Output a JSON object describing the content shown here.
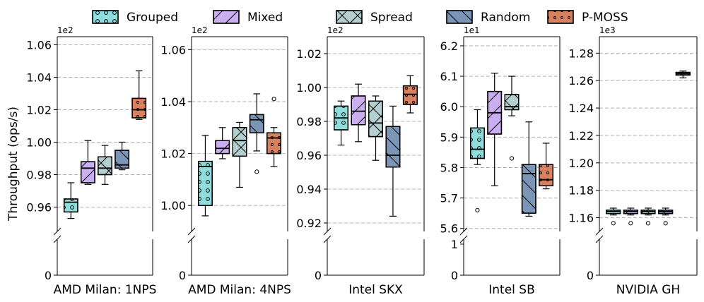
{
  "chart_data": {
    "type": "box",
    "ylabel": "Throughput (ops/s)",
    "legend": {
      "placement": "top",
      "entries": [
        {
          "name": "Grouped",
          "color": "#8fdcdc",
          "hatch": "circles"
        },
        {
          "name": "Mixed",
          "color": "#c9aef0",
          "hatch": "slash"
        },
        {
          "name": "Spread",
          "color": "#b3cfcf",
          "hatch": "x"
        },
        {
          "name": "Random",
          "color": "#7a95b5",
          "hatch": "backslash"
        },
        {
          "name": "P-MOSS",
          "color": "#d9805f",
          "hatch": "dots"
        }
      ]
    },
    "panels": [
      {
        "title": "AMD Milan: 1NPS",
        "multiplier": "1e2",
        "ylim": [
          0.945,
          1.065
        ],
        "yticks": [
          0.96,
          0.98,
          1.0,
          1.02,
          1.04,
          1.06
        ],
        "ytick_labels": [
          "0.96",
          "0.98",
          "1.00",
          "1.02",
          "1.04",
          "1.06"
        ],
        "zero_label": "0",
        "boxes": [
          {
            "series": "Grouped",
            "whislo": 0.953,
            "q1": 0.957,
            "med": 0.963,
            "q3": 0.965,
            "whishi": 0.975,
            "fliers": []
          },
          {
            "series": "Mixed",
            "whislo": 0.974,
            "q1": 0.975,
            "med": 0.984,
            "q3": 0.988,
            "whishi": 1.001,
            "fliers": []
          },
          {
            "series": "Spread",
            "whislo": 0.974,
            "q1": 0.98,
            "med": 0.984,
            "q3": 0.991,
            "whishi": 0.998,
            "fliers": []
          },
          {
            "series": "Random",
            "whislo": 0.983,
            "q1": 0.984,
            "med": 0.986,
            "q3": 0.995,
            "whishi": 1.0,
            "fliers": []
          },
          {
            "series": "P-MOSS",
            "whislo": 1.014,
            "q1": 1.015,
            "med": 1.02,
            "q3": 1.027,
            "whishi": 1.044,
            "fliers": []
          }
        ]
      },
      {
        "title": "AMD Milan: 4NPS",
        "multiplier": "1e2",
        "ylim": [
          0.99,
          1.065
        ],
        "yticks": [
          1.0,
          1.02,
          1.04,
          1.06
        ],
        "ytick_labels": [
          "1.00",
          "1.02",
          "1.04",
          "1.06"
        ],
        "zero_label": "0",
        "boxes": [
          {
            "series": "Grouped",
            "whislo": 0.996,
            "q1": 1.0,
            "med": 1.015,
            "q3": 1.017,
            "whishi": 1.027,
            "fliers": []
          },
          {
            "series": "Mixed",
            "whislo": 1.018,
            "q1": 1.02,
            "med": 1.022,
            "q3": 1.025,
            "whishi": 1.03,
            "fliers": []
          },
          {
            "series": "Spread",
            "whislo": 1.007,
            "q1": 1.019,
            "med": 1.025,
            "q3": 1.03,
            "whishi": 1.032,
            "fliers": []
          },
          {
            "series": "Random",
            "whislo": 1.021,
            "q1": 1.028,
            "med": 1.033,
            "q3": 1.035,
            "whishi": 1.043,
            "fliers": [
              1.013
            ]
          },
          {
            "series": "P-MOSS",
            "whislo": 1.015,
            "q1": 1.02,
            "med": 1.026,
            "q3": 1.028,
            "whishi": 1.03,
            "fliers": [
              1.041
            ]
          }
        ]
      },
      {
        "title": "Intel SKX",
        "multiplier": "1e2",
        "ylim": [
          0.915,
          1.03
        ],
        "yticks": [
          0.92,
          0.94,
          0.96,
          0.98,
          1.0,
          1.02
        ],
        "ytick_labels": [
          "0.92",
          "0.94",
          "0.96",
          "0.98",
          "1.00",
          "1.02"
        ],
        "zero_label": "0",
        "boxes": [
          {
            "series": "Grouped",
            "whislo": 0.966,
            "q1": 0.975,
            "med": 0.982,
            "q3": 0.989,
            "whishi": 0.992,
            "fliers": []
          },
          {
            "series": "Mixed",
            "whislo": 0.968,
            "q1": 0.978,
            "med": 0.986,
            "q3": 0.995,
            "whishi": 1.002,
            "fliers": []
          },
          {
            "series": "Spread",
            "whislo": 0.957,
            "q1": 0.971,
            "med": 0.979,
            "q3": 0.992,
            "whishi": 0.995,
            "fliers": []
          },
          {
            "series": "Random",
            "whislo": 0.924,
            "q1": 0.953,
            "med": 0.96,
            "q3": 0.977,
            "whishi": 0.989,
            "fliers": []
          },
          {
            "series": "P-MOSS",
            "whislo": 0.985,
            "q1": 0.99,
            "med": 0.996,
            "q3": 1.001,
            "whishi": 1.007,
            "fliers": []
          }
        ]
      },
      {
        "title": "Intel SB",
        "multiplier": "1e1",
        "ylim": [
          5.59,
          6.23
        ],
        "yticks": [
          5.6,
          5.7,
          5.8,
          5.9,
          6.0,
          6.1,
          6.2
        ],
        "ytick_labels": [
          "5.6",
          "5.7",
          "5.8",
          "5.9",
          "6.0",
          "6.1",
          "6.2"
        ],
        "zero_label": "0",
        "low_label": "1",
        "boxes": [
          {
            "series": "Grouped",
            "whislo": 5.81,
            "q1": 5.83,
            "med": 5.86,
            "q3": 5.93,
            "whishi": 5.99,
            "fliers": [
              5.66
            ]
          },
          {
            "series": "Mixed",
            "whislo": 5.74,
            "q1": 5.91,
            "med": 5.98,
            "q3": 6.05,
            "whishi": 6.11,
            "fliers": []
          },
          {
            "series": "Spread",
            "whislo": 5.97,
            "q1": 5.99,
            "med": 6.0,
            "q3": 6.04,
            "whishi": 6.1,
            "fliers": [
              5.83
            ]
          },
          {
            "series": "Random",
            "whislo": 5.64,
            "q1": 5.65,
            "med": 5.78,
            "q3": 5.81,
            "whishi": 5.95,
            "fliers": []
          },
          {
            "series": "P-MOSS",
            "whislo": 5.73,
            "q1": 5.74,
            "med": 5.76,
            "q3": 5.81,
            "whishi": 5.88,
            "fliers": []
          }
        ]
      },
      {
        "title": "NVIDIA GH",
        "multiplier": "1e3",
        "ylim": [
          1.15,
          1.292
        ],
        "yticks": [
          1.16,
          1.18,
          1.2,
          1.22,
          1.24,
          1.26,
          1.28
        ],
        "ytick_labels": [
          "1.16",
          "1.18",
          "1.20",
          "1.22",
          "1.24",
          "1.26",
          "1.28"
        ],
        "zero_label": "0",
        "boxes": [
          {
            "series": "Grouped",
            "whislo": 1.162,
            "q1": 1.163,
            "med": 1.1645,
            "q3": 1.1655,
            "whishi": 1.167,
            "fliers": [
              1.156
            ]
          },
          {
            "series": "Mixed",
            "whislo": 1.162,
            "q1": 1.163,
            "med": 1.1645,
            "q3": 1.1655,
            "whishi": 1.167,
            "fliers": [
              1.156
            ]
          },
          {
            "series": "Spread",
            "whislo": 1.162,
            "q1": 1.163,
            "med": 1.1645,
            "q3": 1.1655,
            "whishi": 1.167,
            "fliers": [
              1.156
            ]
          },
          {
            "series": "Random",
            "whislo": 1.162,
            "q1": 1.163,
            "med": 1.1645,
            "q3": 1.1655,
            "whishi": 1.167,
            "fliers": [
              1.156
            ]
          },
          {
            "series": "P-MOSS",
            "whislo": 1.262,
            "q1": 1.264,
            "med": 1.265,
            "q3": 1.266,
            "whishi": 1.267,
            "fliers": []
          }
        ]
      }
    ]
  }
}
